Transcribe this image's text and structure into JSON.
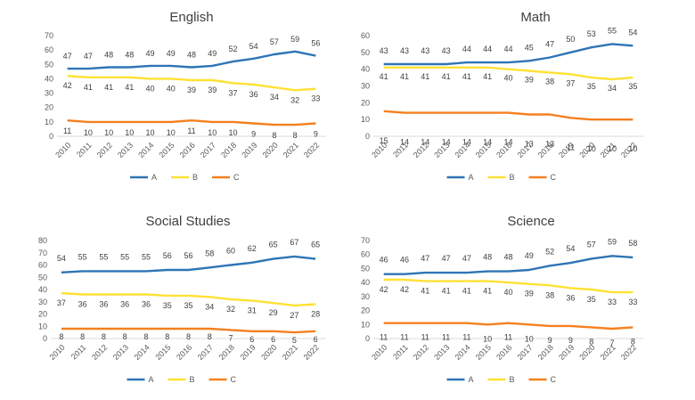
{
  "chart_data": [
    {
      "type": "line",
      "title": "English",
      "x": [
        "2010",
        "2011",
        "2012",
        "2013",
        "2014",
        "2015",
        "2016",
        "2017",
        "2018",
        "2019",
        "2020",
        "2021",
        "2022"
      ],
      "ylim": [
        0,
        70
      ],
      "yticks": [
        0,
        10,
        20,
        30,
        40,
        50,
        60,
        70
      ],
      "grid": false,
      "legend_position": "bottom",
      "series": [
        {
          "name": "A",
          "color": "#2E75B6",
          "values": [
            47,
            47,
            48,
            48,
            49,
            49,
            48,
            49,
            52,
            54,
            57,
            59,
            56
          ]
        },
        {
          "name": "B",
          "color": "#FFE135",
          "values": [
            42,
            41,
            41,
            41,
            40,
            40,
            39,
            39,
            37,
            36,
            34,
            32,
            33
          ]
        },
        {
          "name": "C",
          "color": "#F4801F",
          "values": [
            11,
            10,
            10,
            10,
            10,
            10,
            11,
            10,
            10,
            9,
            8,
            8,
            9
          ]
        }
      ]
    },
    {
      "type": "line",
      "title": "Math",
      "x": [
        "2010",
        "2011",
        "2012",
        "2013",
        "2014",
        "2015",
        "2016",
        "2017",
        "2018",
        "2019",
        "2020",
        "2021",
        "2022"
      ],
      "ylim": [
        0,
        60
      ],
      "yticks": [
        0,
        10,
        20,
        30,
        40,
        50,
        60
      ],
      "grid": false,
      "legend_position": "bottom",
      "series": [
        {
          "name": "A",
          "color": "#2E75B6",
          "values": [
            43,
            43,
            43,
            43,
            44,
            44,
            44,
            45,
            47,
            50,
            53,
            55,
            54
          ]
        },
        {
          "name": "B",
          "color": "#FFE135",
          "values": [
            41,
            41,
            41,
            41,
            41,
            41,
            40,
            39,
            38,
            37,
            35,
            34,
            35
          ]
        },
        {
          "name": "C",
          "color": "#F4801F",
          "values": [
            15,
            14,
            14,
            14,
            14,
            14,
            14,
            13,
            13,
            11,
            10,
            10,
            10
          ]
        }
      ]
    },
    {
      "type": "line",
      "title": "Social Studies",
      "x": [
        "2010",
        "2011",
        "2012",
        "2013",
        "2014",
        "2015",
        "2016",
        "2017",
        "2018",
        "2019",
        "2020",
        "2021",
        "2022"
      ],
      "ylim": [
        0,
        80
      ],
      "yticks": [
        0,
        10,
        20,
        30,
        40,
        50,
        60,
        70,
        80
      ],
      "grid": false,
      "legend_position": "bottom",
      "series": [
        {
          "name": "A",
          "color": "#2E75B6",
          "values": [
            54,
            55,
            55,
            55,
            55,
            56,
            56,
            58,
            60,
            62,
            65,
            67,
            65
          ]
        },
        {
          "name": "B",
          "color": "#FFE135",
          "values": [
            37,
            36,
            36,
            36,
            36,
            35,
            35,
            34,
            32,
            31,
            29,
            27,
            28
          ]
        },
        {
          "name": "C",
          "color": "#F4801F",
          "values": [
            8,
            8,
            8,
            8,
            8,
            8,
            8,
            8,
            7,
            6,
            6,
            5,
            6
          ]
        }
      ]
    },
    {
      "type": "line",
      "title": "Science",
      "x": [
        "2010",
        "2011",
        "2012",
        "2013",
        "2014",
        "2015",
        "2016",
        "2017",
        "2018",
        "2019",
        "2020",
        "2021",
        "2022"
      ],
      "ylim": [
        0,
        70
      ],
      "yticks": [
        0,
        10,
        20,
        30,
        40,
        50,
        60,
        70
      ],
      "grid": false,
      "legend_position": "bottom",
      "series": [
        {
          "name": "A",
          "color": "#2E75B6",
          "values": [
            46,
            46,
            47,
            47,
            47,
            48,
            48,
            49,
            52,
            54,
            57,
            59,
            58
          ]
        },
        {
          "name": "B",
          "color": "#FFE135",
          "values": [
            42,
            42,
            41,
            41,
            41,
            41,
            40,
            39,
            38,
            36,
            35,
            33,
            33
          ]
        },
        {
          "name": "C",
          "color": "#F4801F",
          "values": [
            11,
            11,
            11,
            11,
            11,
            10,
            11,
            10,
            9,
            9,
            8,
            7,
            8
          ]
        }
      ]
    }
  ]
}
